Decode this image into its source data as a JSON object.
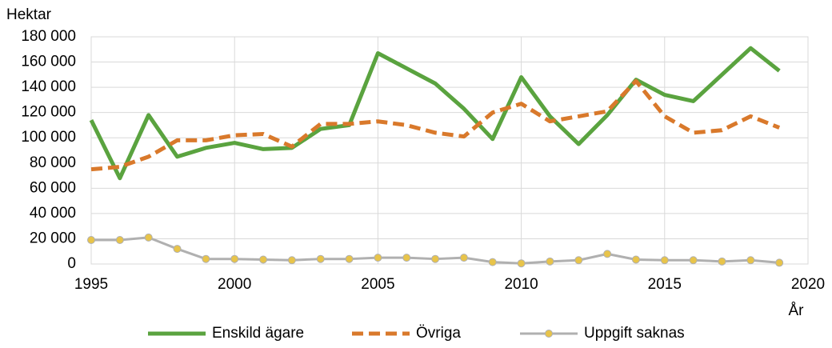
{
  "chart_data": {
    "type": "line",
    "y_label": "Hektar",
    "x_label": "År",
    "x": [
      1995,
      1996,
      1997,
      1998,
      1999,
      2000,
      2001,
      2002,
      2003,
      2004,
      2005,
      2006,
      2007,
      2008,
      2009,
      2010,
      2011,
      2012,
      2013,
      2014,
      2015,
      2016,
      2017,
      2018,
      2019
    ],
    "series": [
      {
        "name": "Enskild ägare",
        "color": "#5aa33f",
        "style": "solid",
        "values": [
          114000,
          68000,
          118000,
          85000,
          92000,
          96000,
          91000,
          92000,
          107000,
          110000,
          167000,
          155000,
          143000,
          123000,
          99000,
          148000,
          117000,
          95000,
          118000,
          146000,
          134000,
          129000,
          150000,
          171000,
          153000
        ]
      },
      {
        "name": "Övriga",
        "color": "#d9792b",
        "style": "dashed",
        "values": [
          75000,
          77000,
          85000,
          98000,
          98000,
          102000,
          103000,
          93000,
          111000,
          111000,
          113000,
          110000,
          104000,
          101000,
          120000,
          127000,
          113000,
          117000,
          121000,
          145000,
          117000,
          104000,
          106000,
          117000,
          108000
        ]
      },
      {
        "name": "Uppgift saknas",
        "color": "#b0b0b0",
        "marker_color": "#e8c44a",
        "style": "markers",
        "values": [
          19000,
          19000,
          21000,
          12000,
          4000,
          4000,
          3500,
          3000,
          4000,
          4000,
          5000,
          5000,
          4000,
          5000,
          1500,
          500,
          2000,
          3000,
          8000,
          3500,
          3000,
          3000,
          2000,
          3000,
          1000
        ]
      }
    ],
    "xlim": [
      1995,
      2020
    ],
    "xticks": [
      1995,
      2000,
      2005,
      2010,
      2015,
      2020
    ],
    "ylim": [
      0,
      180000
    ],
    "yticks": [
      0,
      {
        "value": 20000,
        "label": "20 000"
      },
      {
        "value": 40000,
        "label": "40 000"
      },
      {
        "value": 60000,
        "label": "60 000"
      },
      {
        "value": 80000,
        "label": "80 000"
      },
      {
        "value": 100000,
        "label": "100 000"
      },
      {
        "value": 120000,
        "label": "120 000"
      },
      {
        "value": 140000,
        "label": "140 000"
      },
      {
        "value": 160000,
        "label": "160 000"
      },
      {
        "value": 180000,
        "label": "180 000"
      }
    ],
    "grid": true,
    "legend": "bottom"
  }
}
